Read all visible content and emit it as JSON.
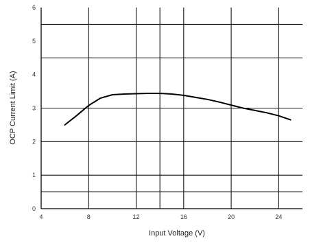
{
  "chart_data": {
    "type": "line",
    "title": "",
    "xlabel": "Input Voltage (V)",
    "ylabel": "OCP Current Limit (A)",
    "xlim": [
      4,
      26
    ],
    "ylim": [
      0,
      6
    ],
    "x_ticks": [
      4,
      8,
      12,
      16,
      20,
      24
    ],
    "x_tick_labels": [
      "4",
      "8",
      "12",
      "16",
      "20",
      "24"
    ],
    "y_ticks": [
      0,
      1,
      2,
      3,
      4,
      5,
      6
    ],
    "y_tick_labels": [
      "0",
      "1",
      "2",
      "3",
      "4",
      "5",
      "6"
    ],
    "grid": {
      "vertical": [
        8,
        12,
        14,
        16,
        20,
        24
      ],
      "horizontal": [
        0.5,
        1,
        2,
        3,
        4.5,
        5.5
      ]
    },
    "legend": "none",
    "series": [
      {
        "color": "#000000",
        "x": [
          6,
          7,
          8,
          9,
          10,
          11,
          12,
          13,
          14,
          15,
          16,
          17,
          18,
          19,
          20,
          21,
          22,
          23,
          24,
          25
        ],
        "y": [
          2.5,
          2.78,
          3.08,
          3.3,
          3.4,
          3.42,
          3.43,
          3.44,
          3.44,
          3.42,
          3.38,
          3.32,
          3.26,
          3.18,
          3.09,
          3.0,
          2.93,
          2.86,
          2.77,
          2.65
        ]
      }
    ]
  }
}
